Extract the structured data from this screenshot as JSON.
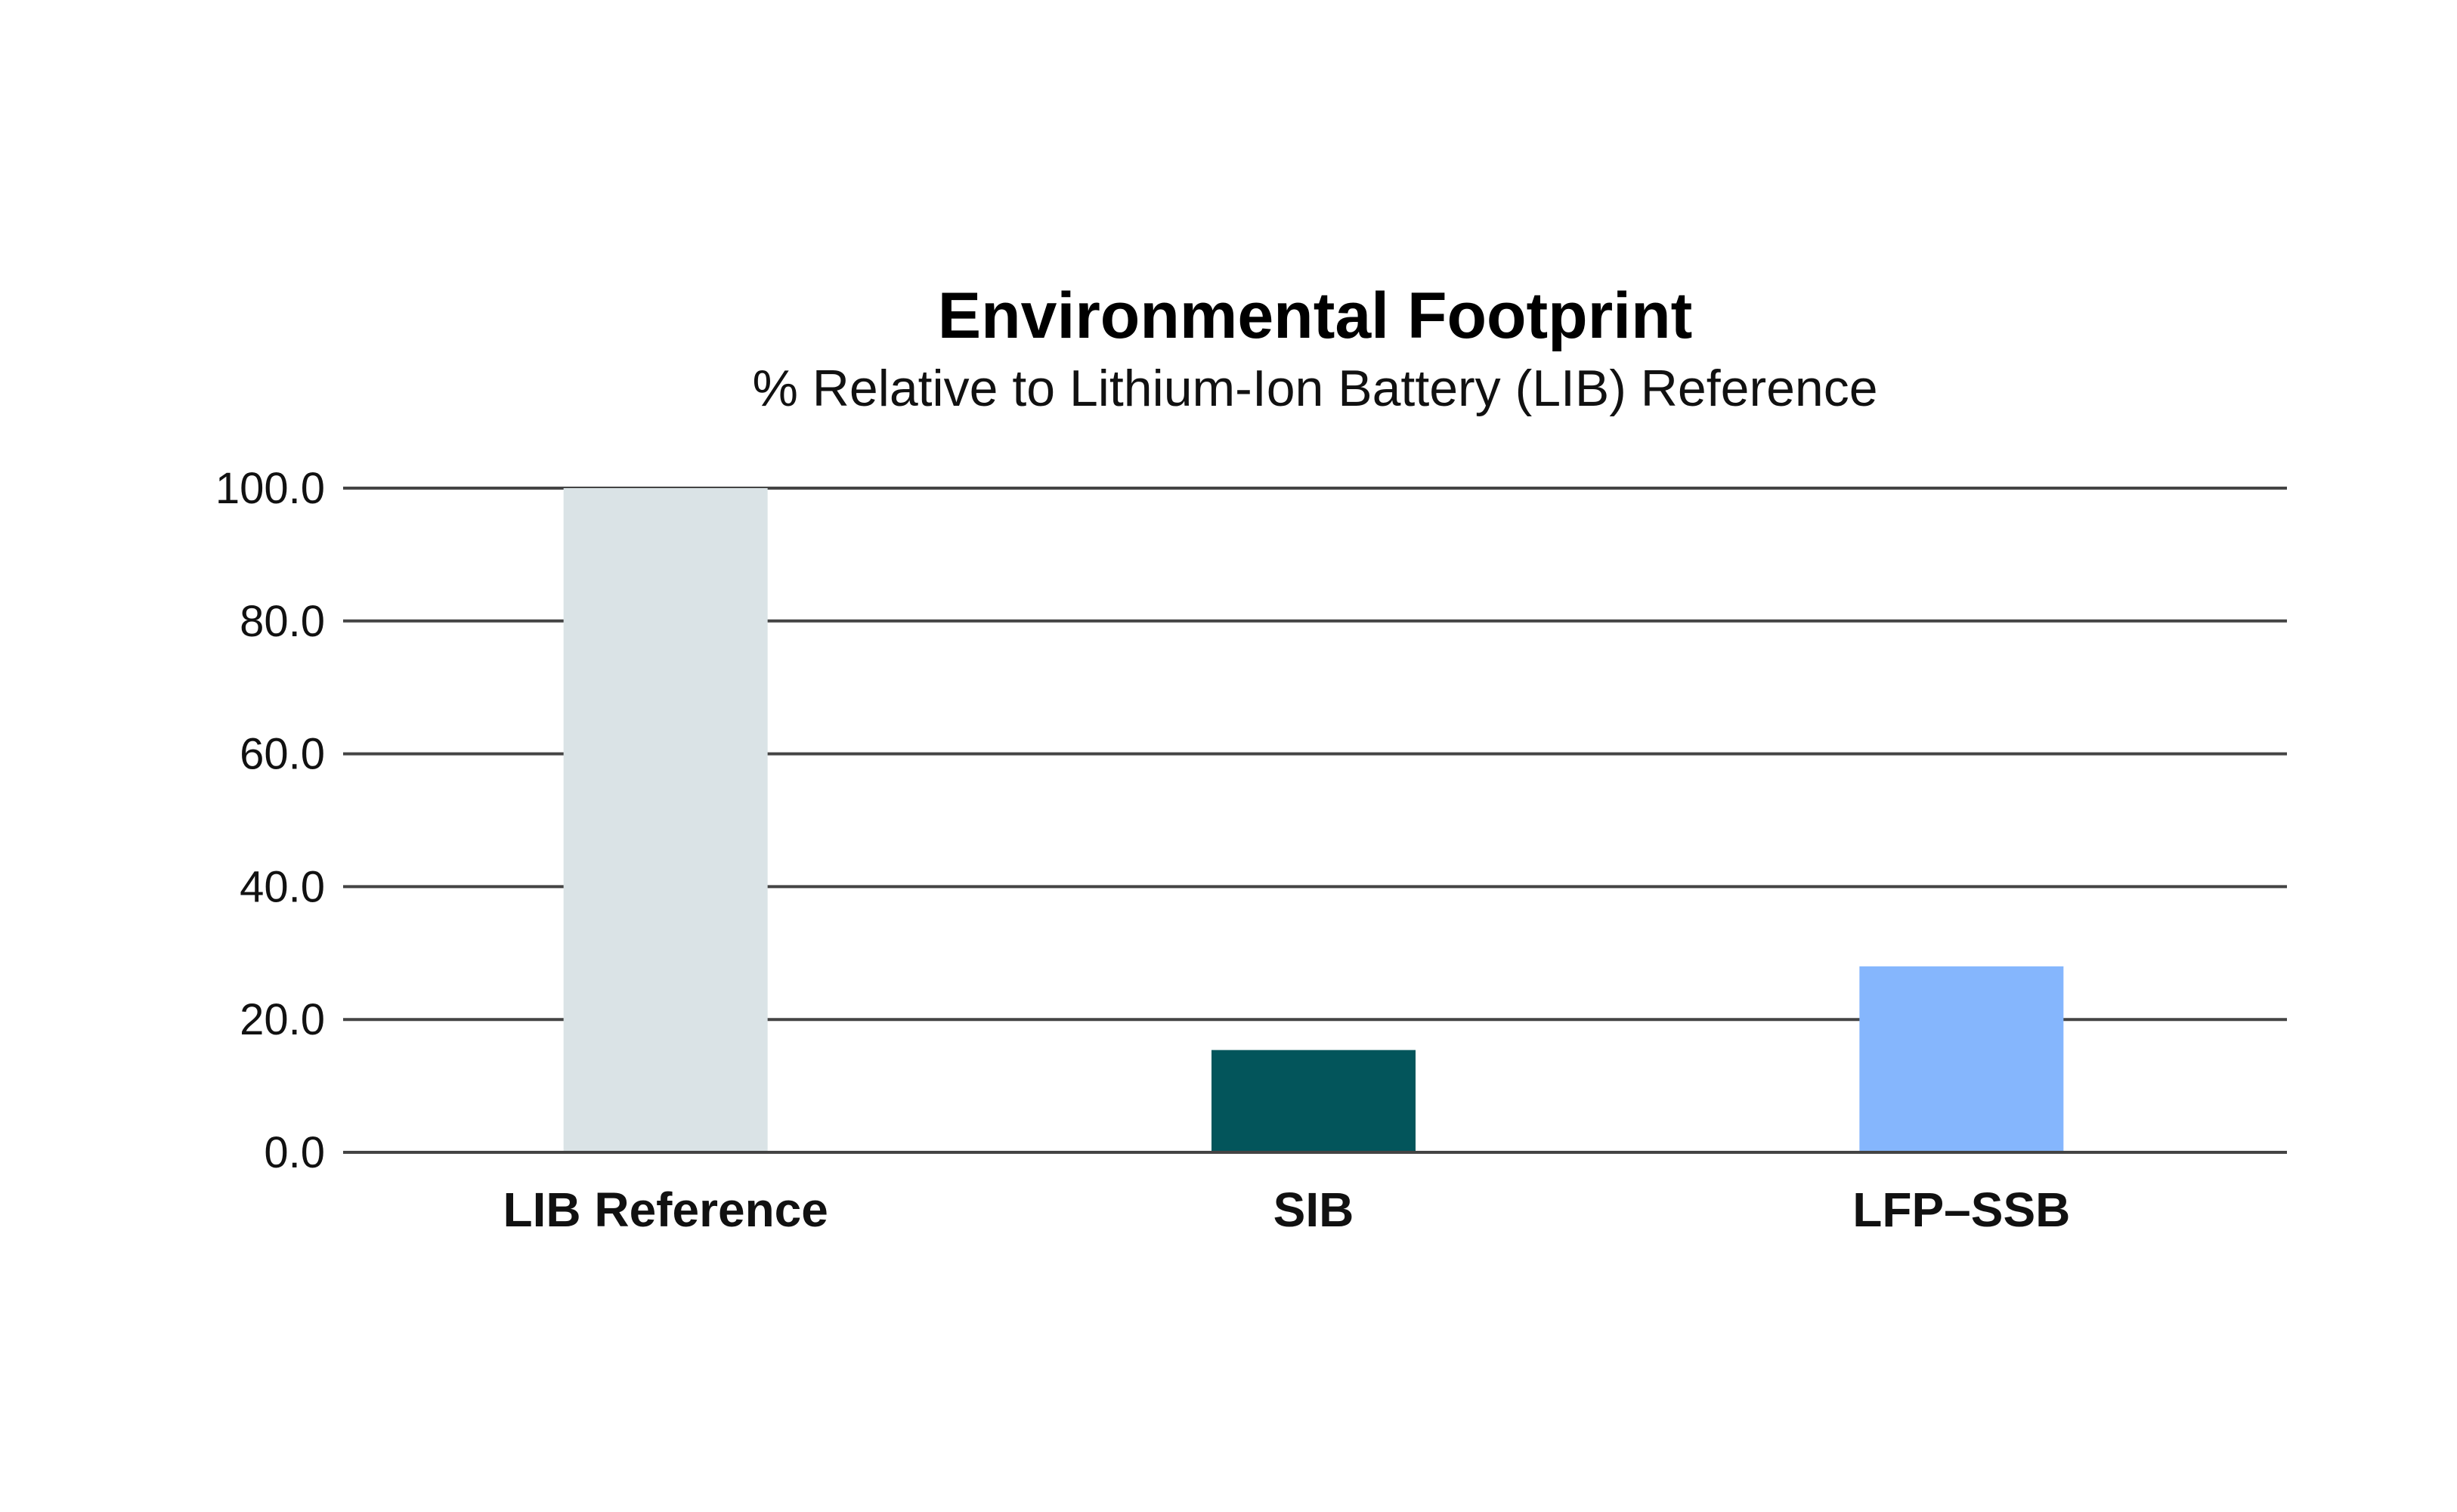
{
  "chart_data": {
    "type": "bar",
    "title": "Environmental Footprint",
    "subtitle": "% Relative to Lithium-Ion Battery (LIB) Reference",
    "xlabel": "",
    "ylabel": "",
    "categories": [
      "LIB Reference",
      "SIB",
      "LFP–SSB"
    ],
    "values": [
      100.0,
      15.4,
      28.0
    ],
    "colors": [
      "#dae3e6",
      "#03555b",
      "#85b6fd"
    ],
    "ylim": [
      0,
      100
    ],
    "yticks": [
      "0.0",
      "20.0",
      "40.0",
      "60.0",
      "80.0",
      "100.0"
    ],
    "grid": true,
    "legend": "none"
  }
}
